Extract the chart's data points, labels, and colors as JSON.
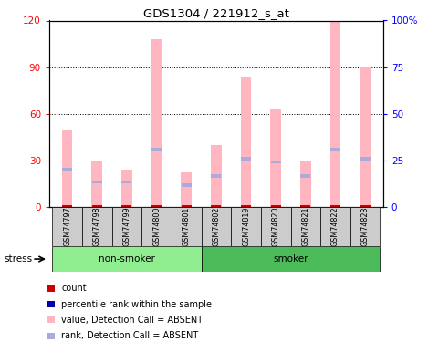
{
  "title": "GDS1304 / 221912_s_at",
  "samples": [
    "GSM74797",
    "GSM74798",
    "GSM74799",
    "GSM74800",
    "GSM74801",
    "GSM74802",
    "GSM74819",
    "GSM74820",
    "GSM74821",
    "GSM74822",
    "GSM74823"
  ],
  "pink_values": [
    50,
    29,
    24,
    108,
    22,
    40,
    84,
    63,
    29,
    120,
    90
  ],
  "blue_rank_values": [
    24,
    16,
    16,
    37,
    14,
    20,
    31,
    29,
    20,
    37,
    31
  ],
  "red_count_values": [
    1,
    1,
    1,
    1,
    1,
    1,
    1,
    1,
    1,
    1,
    1
  ],
  "ylim_left": [
    0,
    120
  ],
  "ylim_right": [
    0,
    100
  ],
  "yticks_left": [
    0,
    30,
    60,
    90,
    120
  ],
  "ytick_labels_left": [
    "0",
    "30",
    "60",
    "90",
    "120"
  ],
  "yticks_right": [
    0,
    25,
    50,
    75,
    100
  ],
  "ytick_labels_right": [
    "0",
    "25",
    "50",
    "75",
    "100%"
  ],
  "pink_color": "#FFB6C1",
  "blue_rank_color": "#AAAADD",
  "red_color": "#CC0000",
  "dark_blue_color": "#0000AA",
  "sample_bg_color": "#CCCCCC",
  "group_color_1": "#90EE90",
  "group_color_2": "#4CBB5A",
  "legend_items": [
    {
      "label": "count",
      "color": "#CC0000"
    },
    {
      "label": "percentile rank within the sample",
      "color": "#0000AA"
    },
    {
      "label": "value, Detection Call = ABSENT",
      "color": "#FFB6C1"
    },
    {
      "label": "rank, Detection Call = ABSENT",
      "color": "#AAAADD"
    }
  ],
  "stress_label": "stress",
  "nonsmoker_label": "non-smoker",
  "smoker_label": "smoker"
}
